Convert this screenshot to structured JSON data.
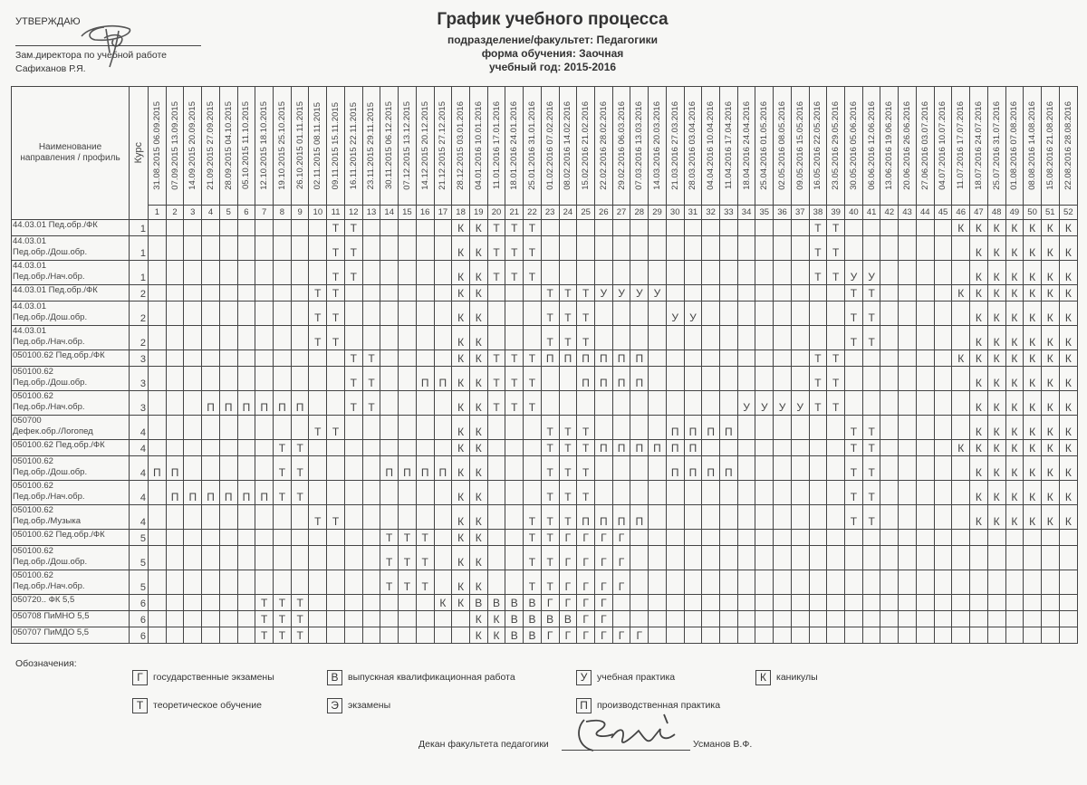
{
  "approval": {
    "label": "УТВЕРЖДАЮ",
    "position": "Зам.директора по учебной работе",
    "name": "Сафиханов Р.Я."
  },
  "header": {
    "title": "График учебного процесса",
    "department": "подразделение/факультет: Педагогики",
    "study_form": "форма обучения: Заочная",
    "year": "учебный год: 2015-2016"
  },
  "table": {
    "name_header": "Наименование направления / профиль",
    "course_header": "Курс",
    "weeks": [
      "31.08.2015 06.09.2015",
      "07.09.2015 13.09.2015",
      "14.09.2015 20.09.2015",
      "21.09.2015 27.09.2015",
      "28.09.2015 04.10.2015",
      "05.10.2015 11.10.2015",
      "12.10.2015 18.10.2015",
      "19.10.2015 25.10.2015",
      "26.10.2015 01.11.2015",
      "02.11.2015 08.11.2015",
      "09.11.2015 15.11.2015",
      "16.11.2015 22.11.2015",
      "23.11.2015 29.11.2015",
      "30.11.2015 06.12.2015",
      "07.12.2015 13.12.2015",
      "14.12.2015 20.12.2015",
      "21.12.2015 27.12.2015",
      "28.12.2015 03.01.2016",
      "04.01.2016 10.01.2016",
      "11.01.2016 17.01.2016",
      "18.01.2016 24.01.2016",
      "25.01.2016 31.01.2016",
      "01.02.2016 07.02.2016",
      "08.02.2016 14.02.2016",
      "15.02.2016 21.02.2016",
      "22.02.2016 28.02.2016",
      "29.02.2016 06.03.2016",
      "07.03.2016 13.03.2016",
      "14.03.2016 20.03.2016",
      "21.03.2016 27.03.2016",
      "28.03.2016 03.04.2016",
      "04.04.2016 10.04.2016",
      "11.04.2016 17.04.2016",
      "18.04.2016 24.04.2016",
      "25.04.2016 01.05.2016",
      "02.05.2016 08.05.2016",
      "09.05.2016 15.05.2016",
      "16.05.2016 22.05.2016",
      "23.05.2016 29.05.2016",
      "30.05.2016 05.06.2016",
      "06.06.2016 12.06.2016",
      "13.06.2016 19.06.2016",
      "20.06.2016 26.06.2016",
      "27.06.2016 03.07.2016",
      "04.07.2016 10.07.2016",
      "11.07.2016 17.07.2016",
      "18.07.2016 24.07.2016",
      "25.07.2016 31.07.2016",
      "01.08.2016 07.08.2016",
      "08.08.2016 14.08.2016",
      "15.08.2016 21.08.2016",
      "22.08.2016 28.08.2016"
    ],
    "rows": [
      {
        "name": "44.03.01 Пед.обр./ФК",
        "course": "1",
        "cells": {
          "11": "Т",
          "12": "Т",
          "18": "К",
          "19": "К",
          "20": "Т",
          "21": "Т",
          "22": "Т",
          "38": "Т",
          "39": "Т",
          "46": "К",
          "47": "К",
          "48": "К",
          "49": "К",
          "50": "К",
          "51": "К",
          "52": "К"
        }
      },
      {
        "name": "44.03.01 Пед.обр./Дош.обр.",
        "course": "1",
        "cells": {
          "11": "Т",
          "12": "Т",
          "18": "К",
          "19": "К",
          "20": "Т",
          "21": "Т",
          "22": "Т",
          "38": "Т",
          "39": "Т",
          "47": "К",
          "48": "К",
          "49": "К",
          "50": "К",
          "51": "К",
          "52": "К"
        }
      },
      {
        "name": "44.03.01 Пед.обр./Нач.обр.",
        "course": "1",
        "cells": {
          "11": "Т",
          "12": "Т",
          "18": "К",
          "19": "К",
          "20": "Т",
          "21": "Т",
          "22": "Т",
          "38": "Т",
          "39": "Т",
          "40": "У",
          "41": "У",
          "47": "К",
          "48": "К",
          "49": "К",
          "50": "К",
          "51": "К",
          "52": "К"
        }
      },
      {
        "name": "44.03.01 Пед.обр./ФК",
        "course": "2",
        "cells": {
          "10": "Т",
          "11": "Т",
          "18": "К",
          "19": "К",
          "23": "Т",
          "24": "Т",
          "25": "Т",
          "26": "У",
          "27": "У",
          "28": "У",
          "29": "У",
          "40": "Т",
          "41": "Т",
          "46": "К",
          "47": "К",
          "48": "К",
          "49": "К",
          "50": "К",
          "51": "К",
          "52": "К"
        }
      },
      {
        "name": "44.03.01 Пед.обр./Дош.обр.",
        "course": "2",
        "cells": {
          "10": "Т",
          "11": "Т",
          "18": "К",
          "19": "К",
          "23": "Т",
          "24": "Т",
          "25": "Т",
          "30": "У",
          "31": "У",
          "40": "Т",
          "41": "Т",
          "47": "К",
          "48": "К",
          "49": "К",
          "50": "К",
          "51": "К",
          "52": "К"
        }
      },
      {
        "name": "44.03.01 Пед.обр./Нач.обр.",
        "course": "2",
        "cells": {
          "10": "Т",
          "11": "Т",
          "18": "К",
          "19": "К",
          "23": "Т",
          "24": "Т",
          "25": "Т",
          "40": "Т",
          "41": "Т",
          "47": "К",
          "48": "К",
          "49": "К",
          "50": "К",
          "51": "К",
          "52": "К"
        }
      },
      {
        "name": "050100.62 Пед.обр./ФК",
        "course": "3",
        "cells": {
          "12": "Т",
          "13": "Т",
          "18": "К",
          "19": "К",
          "20": "Т",
          "21": "Т",
          "22": "Т",
          "23": "П",
          "24": "П",
          "25": "П",
          "26": "П",
          "27": "П",
          "28": "П",
          "38": "Т",
          "39": "Т",
          "46": "К",
          "47": "К",
          "48": "К",
          "49": "К",
          "50": "К",
          "51": "К",
          "52": "К"
        }
      },
      {
        "name": "050100.62 Пед.обр./Дош.обр.",
        "course": "3",
        "cells": {
          "12": "Т",
          "13": "Т",
          "16": "П",
          "17": "П",
          "18": "К",
          "19": "К",
          "20": "Т",
          "21": "Т",
          "22": "Т",
          "25": "П",
          "26": "П",
          "27": "П",
          "28": "П",
          "38": "Т",
          "39": "Т",
          "47": "К",
          "48": "К",
          "49": "К",
          "50": "К",
          "51": "К",
          "52": "К"
        }
      },
      {
        "name": "050100.62 Пед.обр./Нач.обр.",
        "course": "3",
        "cells": {
          "4": "П",
          "5": "П",
          "6": "П",
          "7": "П",
          "8": "П",
          "9": "П",
          "12": "Т",
          "13": "Т",
          "18": "К",
          "19": "К",
          "20": "Т",
          "21": "Т",
          "22": "Т",
          "34": "У",
          "35": "У",
          "36": "У",
          "37": "У",
          "38": "Т",
          "39": "Т",
          "47": "К",
          "48": "К",
          "49": "К",
          "50": "К",
          "51": "К",
          "52": "К"
        }
      },
      {
        "name": "050700 Дефек.обр./Логопед",
        "course": "4",
        "cells": {
          "10": "Т",
          "11": "Т",
          "18": "К",
          "19": "К",
          "23": "Т",
          "24": "Т",
          "25": "Т",
          "30": "П",
          "31": "П",
          "32": "П",
          "33": "П",
          "40": "Т",
          "41": "Т",
          "47": "К",
          "48": "К",
          "49": "К",
          "50": "К",
          "51": "К",
          "52": "К"
        }
      },
      {
        "name": "050100.62 Пед.обр./ФК",
        "course": "4",
        "cells": {
          "8": "Т",
          "9": "Т",
          "18": "К",
          "19": "К",
          "23": "Т",
          "24": "Т",
          "25": "Т",
          "26": "П",
          "27": "П",
          "28": "П",
          "29": "П",
          "30": "П",
          "31": "П",
          "40": "Т",
          "41": "Т",
          "46": "К",
          "47": "К",
          "48": "К",
          "49": "К",
          "50": "К",
          "51": "К",
          "52": "К"
        }
      },
      {
        "name": "050100.62 Пед.обр./Дош.обр.",
        "course": "4",
        "cells": {
          "1": "П",
          "2": "П",
          "8": "Т",
          "9": "Т",
          "14": "П",
          "15": "П",
          "16": "П",
          "17": "П",
          "18": "К",
          "19": "К",
          "23": "Т",
          "24": "Т",
          "25": "Т",
          "30": "П",
          "31": "П",
          "32": "П",
          "33": "П",
          "40": "Т",
          "41": "Т",
          "47": "К",
          "48": "К",
          "49": "К",
          "50": "К",
          "51": "К",
          "52": "К"
        }
      },
      {
        "name": "050100.62 Пед.обр./Нач.обр.",
        "course": "4",
        "cells": {
          "2": "П",
          "3": "П",
          "4": "П",
          "5": "П",
          "6": "П",
          "7": "П",
          "8": "Т",
          "9": "Т",
          "18": "К",
          "19": "К",
          "23": "Т",
          "24": "Т",
          "25": "Т",
          "40": "Т",
          "41": "Т",
          "47": "К",
          "48": "К",
          "49": "К",
          "50": "К",
          "51": "К",
          "52": "К"
        }
      },
      {
        "name": "050100.62 Пед.обр./Музыка",
        "course": "4",
        "cells": {
          "10": "Т",
          "11": "Т",
          "18": "К",
          "19": "К",
          "22": "Т",
          "23": "Т",
          "24": "Т",
          "25": "П",
          "26": "П",
          "27": "П",
          "28": "П",
          "40": "Т",
          "41": "Т",
          "47": "К",
          "48": "К",
          "49": "К",
          "50": "К",
          "51": "К",
          "52": "К"
        }
      },
      {
        "name": "050100.62 Пед.обр./ФК",
        "course": "5",
        "cells": {
          "14": "Т",
          "15": "Т",
          "16": "Т",
          "18": "К",
          "19": "К",
          "22": "Т",
          "23": "Т",
          "24": "Г",
          "25": "Г",
          "26": "Г",
          "27": "Г"
        }
      },
      {
        "name": "050100.62 Пед.обр./Дош.обр.",
        "course": "5",
        "cells": {
          "14": "Т",
          "15": "Т",
          "16": "Т",
          "18": "К",
          "19": "К",
          "22": "Т",
          "23": "Т",
          "24": "Г",
          "25": "Г",
          "26": "Г",
          "27": "Г"
        }
      },
      {
        "name": "050100.62 Пед.обр./Нач.обр.",
        "course": "5",
        "cells": {
          "14": "Т",
          "15": "Т",
          "16": "Т",
          "18": "К",
          "19": "К",
          "22": "Т",
          "23": "Т",
          "24": "Г",
          "25": "Г",
          "26": "Г",
          "27": "Г"
        }
      },
      {
        "name": "050720.. ФК 5,5",
        "course": "6",
        "cells": {
          "7": "Т",
          "8": "Т",
          "9": "Т",
          "17": "К",
          "18": "К",
          "19": "В",
          "20": "В",
          "21": "В",
          "22": "В",
          "23": "Г",
          "24": "Г",
          "25": "Г",
          "26": "Г"
        }
      },
      {
        "name": "050708 ПиМНО 5,5",
        "course": "6",
        "cells": {
          "7": "Т",
          "8": "Т",
          "9": "Т",
          "19": "К",
          "20": "К",
          "21": "В",
          "22": "В",
          "23": "В",
          "24": "В",
          "25": "Г",
          "26": "Г"
        }
      },
      {
        "name": "050707 ПиМДО 5,5",
        "course": "6",
        "cells": {
          "7": "Т",
          "8": "Т",
          "9": "Т",
          "19": "К",
          "20": "К",
          "21": "В",
          "22": "В",
          "23": "Г",
          "24": "Г",
          "25": "Г",
          "26": "Г",
          "27": "Г",
          "28": "Г"
        }
      }
    ]
  },
  "legend": {
    "title": "Обозначения:",
    "items": [
      {
        "code": "Г",
        "label": "государственные экзамены"
      },
      {
        "code": "В",
        "label": "выпускная квалификационная работа"
      },
      {
        "code": "У",
        "label": "учебная практика"
      },
      {
        "code": "К",
        "label": "каникулы"
      },
      {
        "code": "Т",
        "label": "теоретическое обучение"
      },
      {
        "code": "Э",
        "label": "экзамены"
      },
      {
        "code": "П",
        "label": "производственная практика"
      }
    ]
  },
  "footer": {
    "dean_label": "Декан факультета педагогики",
    "dean_name": "Усманов В.Ф."
  }
}
